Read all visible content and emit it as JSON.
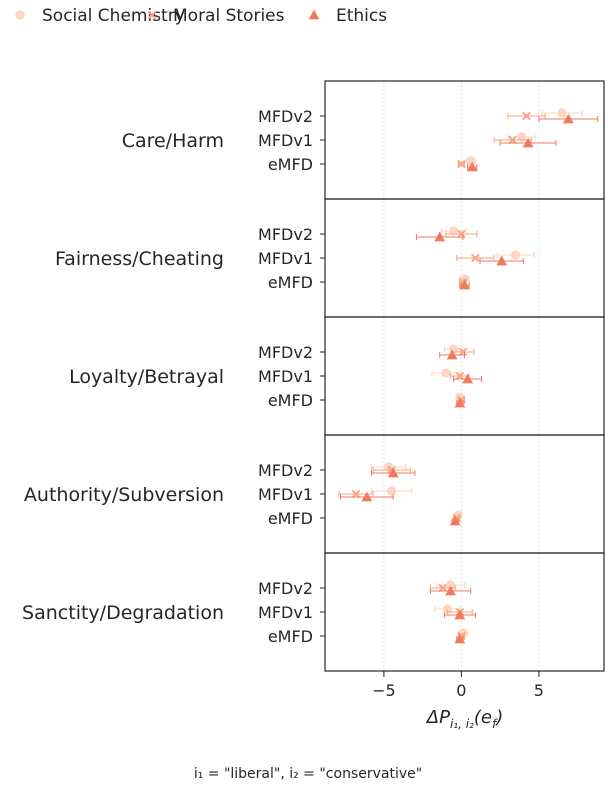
{
  "chart_data": {
    "type": "scatter",
    "orientation": "horizontal",
    "legend": {
      "placement": "top",
      "entries": [
        {
          "name": "Social Chemistry",
          "marker": "circle",
          "color": "#fdd5c0"
        },
        {
          "name": "Moral Stories",
          "marker": "x",
          "color": "#f7a584"
        },
        {
          "name": "Ethics",
          "marker": "triangle",
          "color": "#f07b5c"
        }
      ]
    },
    "categories": [
      "Care/Harm",
      "Fairness/Cheating",
      "Loyalty/Betrayal",
      "Authority/Subversion",
      "Sanctity/Degradation"
    ],
    "dictionaries": [
      "MFDv2",
      "MFDv1",
      "eMFD"
    ],
    "xlabel_main": "ΔP",
    "xlabel_sub": "i₁, i₂",
    "xlabel_arg": "(e",
    "xlabel_arg_sub": "f",
    "xlabel_close": ")",
    "caption": "i₁ = \"liberal\", i₂ = \"conservative\"",
    "xlim": [
      -8.8,
      9.2
    ],
    "xticks": [
      -5,
      0,
      5
    ],
    "xtick_labels": [
      "−5",
      "0",
      "5"
    ],
    "grid": "x-dashed",
    "panels": [
      {
        "category": "Care/Harm",
        "points": {
          "MFDv2": {
            "Social Chemistry": [
              6.5,
              1.3
            ],
            "Moral Stories": [
              4.2,
              1.2
            ],
            "Ethics": [
              6.9,
              1.9
            ]
          },
          "MFDv1": {
            "Social Chemistry": [
              3.9,
              0.9
            ],
            "Moral Stories": [
              3.3,
              1.2
            ],
            "Ethics": [
              4.3,
              1.8
            ]
          },
          "eMFD": {
            "Social Chemistry": [
              0.6,
              0.3
            ],
            "Moral Stories": [
              0.0,
              0.2
            ],
            "Ethics": [
              0.7,
              0.3
            ]
          }
        }
      },
      {
        "category": "Fairness/Cheating",
        "points": {
          "MFDv2": {
            "Social Chemistry": [
              -0.5,
              0.8
            ],
            "Moral Stories": [
              0.0,
              1.0
            ],
            "Ethics": [
              -1.4,
              1.5
            ]
          },
          "MFDv1": {
            "Social Chemistry": [
              3.5,
              1.2
            ],
            "Moral Stories": [
              0.9,
              1.2
            ],
            "Ethics": [
              2.6,
              1.4
            ]
          },
          "eMFD": {
            "Social Chemistry": [
              0.2,
              0.3
            ],
            "Moral Stories": [
              0.1,
              0.2
            ],
            "Ethics": [
              0.2,
              0.3
            ]
          }
        }
      },
      {
        "category": "Loyalty/Betrayal",
        "points": {
          "MFDv2": {
            "Social Chemistry": [
              -0.5,
              0.6
            ],
            "Moral Stories": [
              0.1,
              0.7
            ],
            "Ethics": [
              -0.6,
              0.8
            ]
          },
          "MFDv1": {
            "Social Chemistry": [
              -1.0,
              0.9
            ],
            "Moral Stories": [
              -0.1,
              0.6
            ],
            "Ethics": [
              0.4,
              0.9
            ]
          },
          "eMFD": {
            "Social Chemistry": [
              -0.1,
              0.2
            ],
            "Moral Stories": [
              0.0,
              0.2
            ],
            "Ethics": [
              -0.1,
              0.2
            ]
          }
        }
      },
      {
        "category": "Authority/Subversion",
        "points": {
          "MFDv2": {
            "Social Chemistry": [
              -4.7,
              1.1
            ],
            "Moral Stories": [
              -4.5,
              1.2
            ],
            "Ethics": [
              -4.4,
              1.4
            ]
          },
          "MFDv1": {
            "Social Chemistry": [
              -4.5,
              1.3
            ],
            "Moral Stories": [
              -6.8,
              1.1
            ],
            "Ethics": [
              -6.1,
              1.7
            ]
          },
          "eMFD": {
            "Social Chemistry": [
              -0.2,
              0.2
            ],
            "Moral Stories": [
              -0.3,
              0.2
            ],
            "Ethics": [
              -0.4,
              0.2
            ]
          }
        }
      },
      {
        "category": "Sanctity/Degradation",
        "points": {
          "MFDv2": {
            "Social Chemistry": [
              -0.7,
              0.9
            ],
            "Moral Stories": [
              -1.2,
              0.8
            ],
            "Ethics": [
              -0.7,
              1.3
            ]
          },
          "MFDv1": {
            "Social Chemistry": [
              -0.9,
              0.8
            ],
            "Moral Stories": [
              -0.1,
              0.8
            ],
            "Ethics": [
              -0.1,
              1.0
            ]
          },
          "eMFD": {
            "Social Chemistry": [
              0.1,
              0.3
            ],
            "Moral Stories": [
              0.0,
              0.2
            ],
            "Ethics": [
              -0.1,
              0.2
            ]
          }
        }
      }
    ]
  }
}
